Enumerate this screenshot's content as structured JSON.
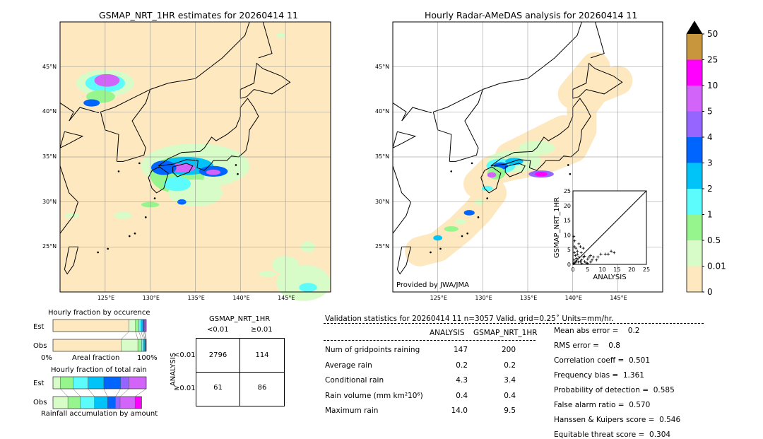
{
  "left_map": {
    "title": "GSMAP_NRT_1HR estimates for 20260414 11"
  },
  "right_map": {
    "title": "Hourly Radar-AMeDAS analysis for 20260414 11",
    "credit": "Provided by JWA/JMA"
  },
  "map_axes": {
    "lon_ticks": [
      "125°E",
      "130°E",
      "135°E",
      "140°E",
      "145°E"
    ],
    "lat_ticks": [
      "45°N",
      "40°N",
      "35°N",
      "30°N",
      "25°N"
    ],
    "lon_range": [
      120,
      150
    ],
    "lat_range": [
      20,
      50
    ]
  },
  "colorbar": {
    "labels": [
      "0",
      "0.01",
      "0.5",
      "1",
      "2",
      "3",
      "4",
      "5",
      "10",
      "25",
      "50"
    ],
    "colors": [
      "#fee8c0",
      "#d8fcc8",
      "#96f58c",
      "#5cfcfc",
      "#00c4f8",
      "#0064ff",
      "#9664ff",
      "#d264fa",
      "#ff00ff",
      "#c8963c"
    ],
    "extend_color": "#000000"
  },
  "occurrence": {
    "title": "Hourly fraction by occurence",
    "est_label": "Est",
    "obs_label": "Obs",
    "x_left": "0%",
    "x_mid": "Areal fraction",
    "x_right": "100%",
    "est": [
      0.815,
      0.07,
      0.035,
      0.025,
      0.02,
      0.015,
      0.01,
      0.01
    ],
    "obs": [
      0.73,
      0.18,
      0.04,
      0.02,
      0.015,
      0.01,
      0.005
    ]
  },
  "total_rain": {
    "title": "Hourly fraction of total rain",
    "est_label": "Est",
    "obs_label": "Obs",
    "xlabel": "Rainfall accumulation by amount",
    "est": [
      0.08,
      0.135,
      0.16,
      0.17,
      0.18,
      0.09,
      0.185
    ],
    "obs": [
      0.16,
      0.135,
      0.15,
      0.14,
      0.085,
      0.05,
      0.16,
      0.07
    ]
  },
  "contingency": {
    "title": "GSMAP_NRT_1HR",
    "col_labels": [
      "<0.01",
      "≥0.01"
    ],
    "row_axis": "ANALYSIS",
    "row_labels": [
      "<0.01",
      "≥0.01"
    ],
    "cells": [
      [
        "2796",
        "114"
      ],
      [
        "61",
        "86"
      ]
    ]
  },
  "validation": {
    "header": "Validation statistics for 20260414 11  n=3057 Valid. grid=0.25˚ Units=mm/hr.",
    "col_headers": [
      "ANALYSIS",
      "GSMAP_NRT_1HR"
    ],
    "rows": [
      {
        "label": "Num of gridpoints raining",
        "a": "147",
        "g": "200"
      },
      {
        "label": "Average rain",
        "a": "0.2",
        "g": "0.2"
      },
      {
        "label": "Conditional rain",
        "a": "4.3",
        "g": "3.4"
      },
      {
        "label": "Rain volume (mm km²10⁶)",
        "a": "0.4",
        "g": "0.4"
      },
      {
        "label": "Maximum rain",
        "a": "14.0",
        "g": "9.5"
      }
    ],
    "scores": [
      "Mean abs error =    0.2",
      "RMS error =    0.8",
      "Correlation coeff =  0.501",
      "Frequency bias =  1.361",
      "Probability of detection =  0.585",
      "False alarm ratio =  0.570",
      "Hanssen & Kuipers score =  0.546",
      "Equitable threat score =  0.304"
    ]
  },
  "chart_data": {
    "type": "scatter",
    "xlabel": "ANALYSIS",
    "ylabel": "GSMAP_NRT_1HR",
    "xlim": [
      0,
      25
    ],
    "ylim": [
      0,
      25
    ],
    "ticks": [
      "0",
      "5",
      "10",
      "15",
      "20",
      "25"
    ],
    "points": [
      [
        0.3,
        9.5
      ],
      [
        0.6,
        8
      ],
      [
        0.5,
        6
      ],
      [
        1,
        5.5
      ],
      [
        2,
        7
      ],
      [
        2.5,
        6
      ],
      [
        3.5,
        5.5
      ],
      [
        1.5,
        4.5
      ],
      [
        2.8,
        4
      ],
      [
        0.8,
        3
      ],
      [
        1.2,
        2
      ],
      [
        0.4,
        1.5
      ],
      [
        2,
        2.5
      ],
      [
        3,
        1.5
      ],
      [
        4,
        1
      ],
      [
        5,
        1.8
      ],
      [
        5.5,
        2.5
      ],
      [
        6,
        3
      ],
      [
        6.5,
        1.5
      ],
      [
        4.5,
        0.5
      ],
      [
        3,
        0.3
      ],
      [
        1.8,
        0.8
      ],
      [
        0.2,
        0.2
      ],
      [
        7,
        2.5
      ],
      [
        8,
        1.5
      ],
      [
        8.5,
        2.5
      ],
      [
        9.5,
        3.5
      ],
      [
        11,
        3.5
      ],
      [
        12,
        3.5
      ],
      [
        13,
        4.5
      ],
      [
        14,
        4
      ],
      [
        0.5,
        4
      ],
      [
        1.5,
        3.5
      ],
      [
        2.5,
        1
      ],
      [
        3.5,
        2.5
      ],
      [
        1,
        1
      ],
      [
        0.7,
        0.5
      ],
      [
        5,
        0.3
      ],
      [
        6,
        0.8
      ],
      [
        4,
        2.8
      ]
    ]
  }
}
